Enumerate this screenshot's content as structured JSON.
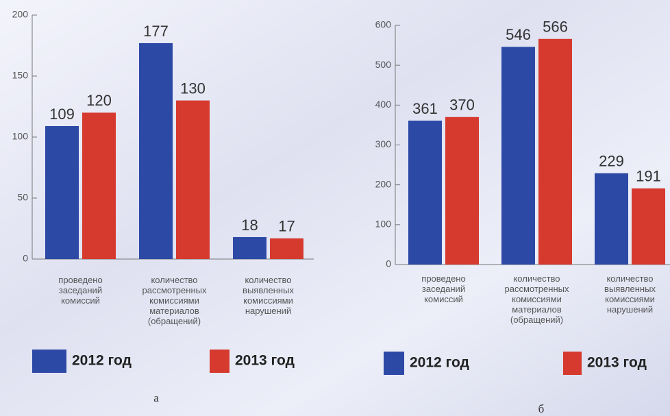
{
  "chart_data": [
    {
      "type": "bar",
      "caption": "а",
      "categories": [
        "проведено\nзаседаний\nкомиссий",
        "количество\nрассмотренных\nкомиссиями\nматериалов\n(обращений)",
        "количество\nвыявленных\nкомиссиями\nнарушений"
      ],
      "series": [
        {
          "name": "2012 год",
          "color": "#2c49a6",
          "values": [
            109,
            177,
            18
          ]
        },
        {
          "name": "2013 год",
          "color": "#d63a2f",
          "values": [
            120,
            130,
            17
          ]
        }
      ],
      "ylim": [
        0,
        200
      ],
      "yticks": [
        0,
        50,
        100,
        150,
        200
      ]
    },
    {
      "type": "bar",
      "caption": "б",
      "categories": [
        "проведено\nзаседаний\nкомиссий",
        "количество\nрассмотренных\nкомиссиями\nматериалов\n(обращений)",
        "количество\nвыявленных\nкомиссиями\nнарушений"
      ],
      "series": [
        {
          "name": "2012 год",
          "color": "#2c49a6",
          "values": [
            361,
            546,
            229
          ]
        },
        {
          "name": "2013 год",
          "color": "#d63a2f",
          "values": [
            370,
            566,
            191
          ]
        }
      ],
      "ylim": [
        0,
        600
      ],
      "yticks": [
        0,
        100,
        200,
        300,
        400,
        500,
        600
      ]
    }
  ]
}
